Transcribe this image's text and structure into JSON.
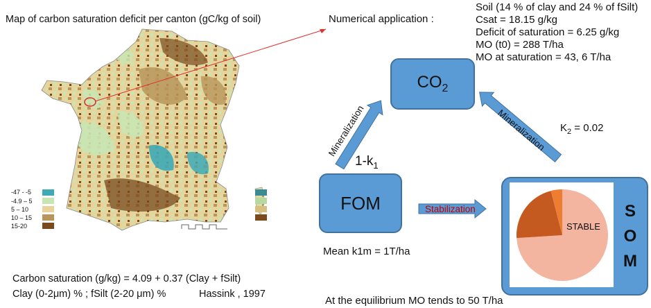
{
  "map": {
    "title": "Map of carbon saturation deficit per canton (gC/kg of soil)",
    "legend": [
      {
        "label": "-47 - -5",
        "color": "#3fa9b5"
      },
      {
        "label": "-4.9 – 5",
        "color": "#c8e6b4"
      },
      {
        "label": "5 – 10",
        "color": "#e8d49a"
      },
      {
        "label": "10 – 15",
        "color": "#b8955a"
      },
      {
        "label": "15-20",
        "color": "#7a4a1e"
      }
    ]
  },
  "formula": {
    "line1": "Carbon saturation (g/kg) = 4.09 + 0.37 (Clay + fSilt)",
    "line2": "Clay (0-2μm) % ; fSilt (2-20 μm) %",
    "citation": "Hassink , 1997"
  },
  "numerical": {
    "heading": "Numerical application :",
    "lines": [
      "Soil (14 % of clay and 24 % of fSilt)",
      "Csat = 18.15 g/kg",
      "Deficit of saturation = 6.25 g/kg",
      "MO (t0) = 288 T/ha",
      "MO at saturation = 43, 6 T/ha"
    ]
  },
  "diagram": {
    "co2": {
      "main": "CO",
      "sub": "2"
    },
    "fom": "FOM",
    "mineralization_left": "Mineralization",
    "mineralization_right": "Mineralization",
    "k1": {
      "main": "1-k",
      "sub": "1"
    },
    "k2": {
      "main": "K",
      "sub": "2",
      "rest": " = 0.02"
    },
    "stabilization": "Stabilization",
    "stable": "STABLE",
    "som_letters": [
      "S",
      "O",
      "M"
    ],
    "mean_k1m": "Mean k1m = 1T/ha",
    "equilibrium": "At the equilibrium MO tends to 50 T/ha"
  },
  "colors": {
    "box_fill": "#5b9bd5",
    "box_border": "#41719c",
    "pie_stable": "#f4b5a0",
    "pie_dark": "#c55a20",
    "pie_small": "#ed7d31",
    "stabilization_text": "#c00000",
    "red_arrow": "#e03030"
  },
  "pie": [
    {
      "label": "STABLE",
      "share": 0.74
    },
    {
      "label": "dark",
      "share": 0.22
    },
    {
      "label": "small",
      "share": 0.04
    }
  ]
}
